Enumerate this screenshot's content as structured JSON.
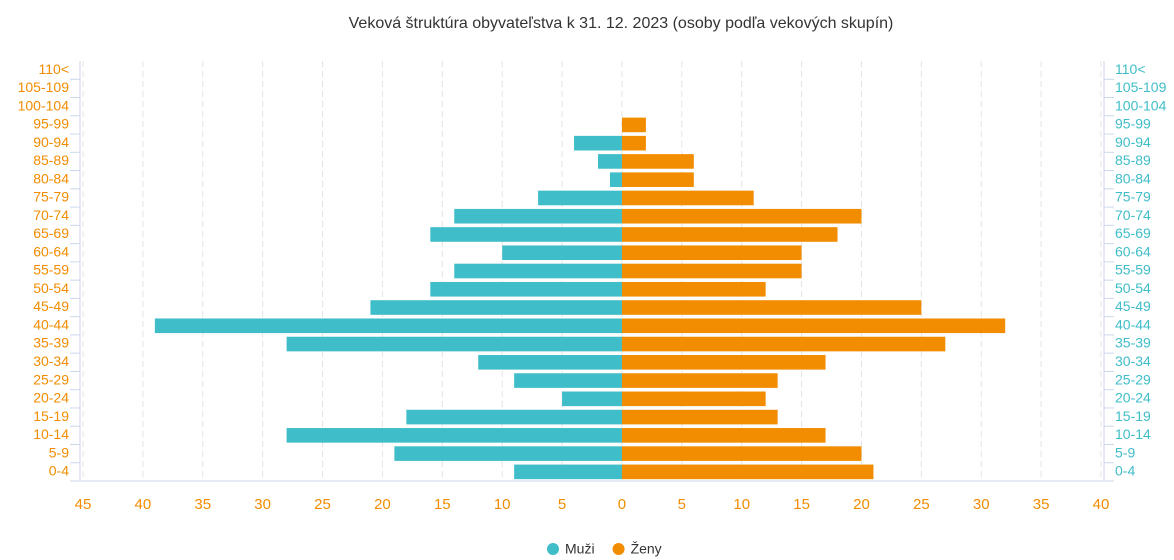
{
  "chart_data": {
    "type": "pyramid",
    "title": "Veková štruktúra obyvateľstva k 31. 12. 2023 (osoby podľa vekových skupín)",
    "categories": [
      "0-4",
      "5-9",
      "10-14",
      "15-19",
      "20-24",
      "25-29",
      "30-34",
      "35-39",
      "40-44",
      "45-49",
      "50-54",
      "55-59",
      "60-64",
      "65-69",
      "70-74",
      "75-79",
      "80-84",
      "85-89",
      "90-94",
      "95-99",
      "100-104",
      "105-109",
      "110<"
    ],
    "series": [
      {
        "name": "Muži",
        "color": "#3fbdc8",
        "side": "left",
        "values": [
          9,
          19,
          28,
          18,
          5,
          9,
          12,
          28,
          39,
          21,
          16,
          14,
          10,
          16,
          14,
          7,
          1,
          2,
          4,
          0,
          0,
          0,
          0
        ]
      },
      {
        "name": "Ženy",
        "color": "#f28c00",
        "side": "right",
        "values": [
          21,
          20,
          17,
          13,
          12,
          13,
          17,
          27,
          32,
          25,
          12,
          15,
          15,
          18,
          20,
          11,
          6,
          6,
          2,
          2,
          0,
          0,
          0
        ]
      }
    ],
    "xlim": [
      -45,
      40
    ],
    "xticks": [
      {
        "value": -45,
        "label": "45"
      },
      {
        "value": -40,
        "label": "40"
      },
      {
        "value": -35,
        "label": "35"
      },
      {
        "value": -30,
        "label": "30"
      },
      {
        "value": -25,
        "label": "25"
      },
      {
        "value": -20,
        "label": "20"
      },
      {
        "value": -15,
        "label": "15"
      },
      {
        "value": -10,
        "label": "10"
      },
      {
        "value": -5,
        "label": "5"
      },
      0,
      5,
      10,
      15,
      20,
      25,
      30,
      35,
      40
    ],
    "grid": true,
    "legend": "bottom"
  }
}
